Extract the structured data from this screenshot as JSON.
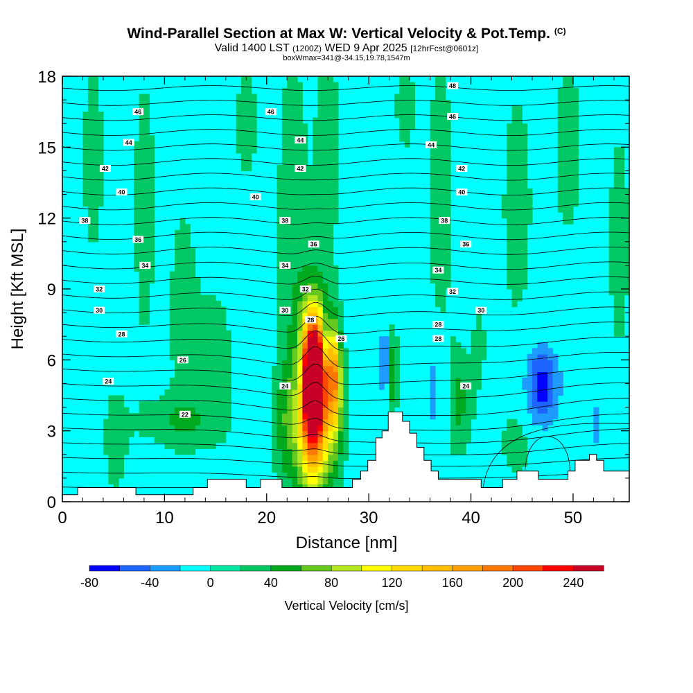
{
  "title": {
    "main": "Wind-Parallel Section at Max W: Vertical Velocity & Pot.Temp.",
    "copyright": "(C)",
    "valid_prefix": "Valid 1400 LST",
    "valid_utc": "(1200Z)",
    "valid_date": "WED 9 Apr 2025",
    "forecast": "[12hrFcst@0601z]",
    "box_info": "boxWmax=341@-34.15,19.78,1547m"
  },
  "chart_data": {
    "type": "heatmap",
    "xlabel": "Distance [nm]",
    "ylabel": "Height [Kft MSL]",
    "xlim": [
      0,
      55.5
    ],
    "ylim": [
      0,
      18
    ],
    "x_ticks": [
      0,
      10,
      20,
      30,
      40,
      50
    ],
    "y_ticks": [
      0,
      3,
      6,
      9,
      12,
      15,
      18
    ],
    "colorbar": {
      "label": "Vertical Velocity [cm/s]",
      "levels": [
        -80,
        -60,
        -40,
        -20,
        0,
        20,
        40,
        60,
        80,
        100,
        120,
        140,
        160,
        180,
        200,
        220,
        240,
        260
      ],
      "tick_labels": [
        "-80",
        "-40",
        "0",
        "40",
        "80",
        "120",
        "160",
        "200",
        "240"
      ],
      "colors": [
        "#0000ff",
        "#1e64ff",
        "#1e9bff",
        "#00ffff",
        "#00e6a0",
        "#00c864",
        "#00aa1e",
        "#64c81e",
        "#b4e61e",
        "#ffff00",
        "#ffdc00",
        "#ffbe00",
        "#ffa000",
        "#ff7800",
        "#ff4600",
        "#ff0000",
        "#c80028"
      ]
    },
    "background_color": "#00ffff",
    "terrain": [
      [
        0,
        0.3
      ],
      [
        1.5,
        0.3
      ],
      [
        1.5,
        0.6
      ],
      [
        7.2,
        0.6
      ],
      [
        7.2,
        0.3
      ],
      [
        12.8,
        0.3
      ],
      [
        12.8,
        0.6
      ],
      [
        14.2,
        0.6
      ],
      [
        14.2,
        0.95
      ],
      [
        18,
        0.95
      ],
      [
        18,
        0.6
      ],
      [
        19.4,
        0.6
      ],
      [
        19.4,
        0.95
      ],
      [
        21.5,
        0.95
      ],
      [
        21.5,
        0.6
      ],
      [
        28.4,
        0.6
      ],
      [
        28.4,
        0.95
      ],
      [
        29.2,
        0.95
      ],
      [
        29.2,
        1.3
      ],
      [
        29.9,
        1.3
      ],
      [
        29.9,
        1.75
      ],
      [
        30.7,
        1.75
      ],
      [
        30.7,
        2.7
      ],
      [
        31.3,
        2.7
      ],
      [
        31.3,
        3.0
      ],
      [
        31.9,
        3.0
      ],
      [
        31.9,
        3.8
      ],
      [
        33.3,
        3.8
      ],
      [
        33.3,
        3.4
      ],
      [
        34,
        3.4
      ],
      [
        34,
        2.9
      ],
      [
        34.7,
        2.9
      ],
      [
        34.7,
        2.3
      ],
      [
        35.4,
        2.3
      ],
      [
        35.4,
        1.75
      ],
      [
        36.1,
        1.75
      ],
      [
        36.1,
        1.3
      ],
      [
        36.8,
        1.3
      ],
      [
        36.8,
        0.95
      ],
      [
        41,
        0.95
      ],
      [
        41,
        0.6
      ],
      [
        43.1,
        0.6
      ],
      [
        43.1,
        0.95
      ],
      [
        44.5,
        0.95
      ],
      [
        44.5,
        1.3
      ],
      [
        46.6,
        1.3
      ],
      [
        46.6,
        0.95
      ],
      [
        49.5,
        0.95
      ],
      [
        49.5,
        1.3
      ],
      [
        50.2,
        1.3
      ],
      [
        50.2,
        1.75
      ],
      [
        51.6,
        1.75
      ],
      [
        51.6,
        2.0
      ],
      [
        52.3,
        2.0
      ],
      [
        52.3,
        1.75
      ],
      [
        53,
        1.75
      ],
      [
        53,
        1.3
      ],
      [
        55.5,
        1.3
      ]
    ],
    "w_features": [
      {
        "x": 24.6,
        "z": 5.2,
        "sx": 0.7,
        "sz": 1.5,
        "w": 240
      },
      {
        "x": 24.6,
        "z": 4.6,
        "sx": 1.0,
        "sz": 2.5,
        "w": 150
      },
      {
        "x": 24.6,
        "z": 3.8,
        "sx": 1.25,
        "sz": 3.0,
        "w": 70
      },
      {
        "x": 26.6,
        "z": 5.3,
        "sx": 0.45,
        "sz": 1.4,
        "w": 115
      },
      {
        "x": 26.8,
        "z": 4.0,
        "sx": 0.75,
        "sz": 2.2,
        "w": 45
      },
      {
        "x": 32.2,
        "z": 5.5,
        "sx": 0.45,
        "sz": 1.4,
        "w": 60
      },
      {
        "x": 38.8,
        "z": 4.2,
        "sx": 1.0,
        "sz": 1.6,
        "w": 40
      },
      {
        "x": 21.8,
        "z": 3.2,
        "sx": 0.9,
        "sz": 1.8,
        "w": 35
      },
      {
        "x": 23.3,
        "z": 5.5,
        "sx": 0.4,
        "sz": 1.1,
        "w": -45
      },
      {
        "x": 25.8,
        "z": 6.8,
        "sx": 0.3,
        "sz": 1.0,
        "w": -40
      },
      {
        "x": 31.6,
        "z": 5.8,
        "sx": 0.35,
        "sz": 1.2,
        "w": -80
      },
      {
        "x": 31.5,
        "z": 11.2,
        "sx": 0.25,
        "sz": 0.8,
        "w": -35
      },
      {
        "x": 28.6,
        "z": 5.0,
        "sx": 0.5,
        "sz": 1.2,
        "w": -25
      },
      {
        "x": 36.3,
        "z": 4.8,
        "sx": 0.45,
        "sz": 1.4,
        "w": -45
      },
      {
        "x": 37.5,
        "z": 4.0,
        "sx": 0.35,
        "sz": 1.2,
        "w": -35
      },
      {
        "x": 41.3,
        "z": 4.0,
        "sx": 0.35,
        "sz": 1.0,
        "w": -30
      },
      {
        "x": 46.9,
        "z": 4.9,
        "sx": 1.3,
        "sz": 1.3,
        "w": -75
      },
      {
        "x": 52.3,
        "z": 3.2,
        "sx": 0.5,
        "sz": 1.0,
        "w": -35
      },
      {
        "x": 28.5,
        "z": 17.5,
        "sx": 0.4,
        "sz": 0.7,
        "w": -30
      },
      {
        "x": 11.5,
        "z": 3.4,
        "sx": 3.0,
        "sz": 0.8,
        "w": 28
      },
      {
        "x": 3.0,
        "z": 14.5,
        "sx": 0.9,
        "sz": 3.5,
        "w": 25
      },
      {
        "x": 8.0,
        "z": 12.5,
        "sx": 0.9,
        "sz": 5.0,
        "w": 25
      },
      {
        "x": 11.8,
        "z": 8.0,
        "sx": 1.2,
        "sz": 4.0,
        "w": 24
      },
      {
        "x": 15.0,
        "z": 6.0,
        "sx": 1.4,
        "sz": 2.5,
        "w": 25
      },
      {
        "x": 22.5,
        "z": 11.0,
        "sx": 1.3,
        "sz": 7.5,
        "w": 26
      },
      {
        "x": 26.0,
        "z": 15.0,
        "sx": 1.0,
        "sz": 4.5,
        "w": 24
      },
      {
        "x": 37.0,
        "z": 13.0,
        "sx": 1.2,
        "sz": 5.0,
        "w": 25
      },
      {
        "x": 44.5,
        "z": 12.5,
        "sx": 1.3,
        "sz": 4.5,
        "w": 24
      },
      {
        "x": 49.5,
        "z": 15.0,
        "sx": 1.2,
        "sz": 3.5,
        "w": 24
      },
      {
        "x": 54.5,
        "z": 11.0,
        "sx": 0.9,
        "sz": 4.0,
        "w": 25
      },
      {
        "x": 5.2,
        "z": 2.5,
        "sx": 1.0,
        "sz": 2.0,
        "w": 24
      },
      {
        "x": 18.0,
        "z": 16.0,
        "sx": 1.0,
        "sz": 2.5,
        "w": 22
      },
      {
        "x": 33.5,
        "z": 16.8,
        "sx": 0.8,
        "sz": 1.8,
        "w": 24
      },
      {
        "x": 44.5,
        "z": 2.5,
        "sx": 1.2,
        "sz": 1.2,
        "w": 26
      },
      {
        "x": 40.8,
        "z": 6.3,
        "sx": 0.5,
        "sz": 1.5,
        "w": 26
      }
    ],
    "theta_contours": [
      20,
      21,
      22,
      23,
      24,
      25,
      26,
      27,
      28,
      29,
      30,
      31,
      32,
      33,
      34,
      35,
      36,
      37,
      38,
      39,
      40,
      41,
      42,
      43,
      44,
      45,
      46,
      47,
      48
    ],
    "theta_labels": [
      {
        "x": 12.0,
        "z": 3.7,
        "text": "22"
      },
      {
        "x": 4.5,
        "z": 5.1,
        "text": "24"
      },
      {
        "x": 21.8,
        "z": 4.9,
        "text": "24"
      },
      {
        "x": 39.5,
        "z": 4.9,
        "text": "24"
      },
      {
        "x": 11.8,
        "z": 6.0,
        "text": "26"
      },
      {
        "x": 27.3,
        "z": 6.9,
        "text": "26"
      },
      {
        "x": 5.8,
        "z": 7.1,
        "text": "28"
      },
      {
        "x": 24.3,
        "z": 7.7,
        "text": "28"
      },
      {
        "x": 36.8,
        "z": 6.9,
        "text": "28"
      },
      {
        "x": 36.8,
        "z": 7.5,
        "text": "28"
      },
      {
        "x": 3.6,
        "z": 8.1,
        "text": "30"
      },
      {
        "x": 21.8,
        "z": 8.1,
        "text": "30"
      },
      {
        "x": 41.0,
        "z": 8.1,
        "text": "30"
      },
      {
        "x": 3.6,
        "z": 9.0,
        "text": "32"
      },
      {
        "x": 23.8,
        "z": 9.0,
        "text": "32"
      },
      {
        "x": 38.2,
        "z": 8.9,
        "text": "32"
      },
      {
        "x": 8.1,
        "z": 10.0,
        "text": "34"
      },
      {
        "x": 21.8,
        "z": 10.0,
        "text": "34"
      },
      {
        "x": 36.8,
        "z": 9.8,
        "text": "34"
      },
      {
        "x": 7.4,
        "z": 11.1,
        "text": "36"
      },
      {
        "x": 24.6,
        "z": 10.9,
        "text": "36"
      },
      {
        "x": 39.5,
        "z": 10.9,
        "text": "36"
      },
      {
        "x": 2.2,
        "z": 11.9,
        "text": "38"
      },
      {
        "x": 21.8,
        "z": 11.9,
        "text": "38"
      },
      {
        "x": 37.4,
        "z": 11.9,
        "text": "38"
      },
      {
        "x": 5.8,
        "z": 13.1,
        "text": "40"
      },
      {
        "x": 18.9,
        "z": 12.9,
        "text": "40"
      },
      {
        "x": 39.1,
        "z": 13.1,
        "text": "40"
      },
      {
        "x": 4.2,
        "z": 14.1,
        "text": "42"
      },
      {
        "x": 23.3,
        "z": 14.1,
        "text": "42"
      },
      {
        "x": 39.1,
        "z": 14.1,
        "text": "42"
      },
      {
        "x": 6.5,
        "z": 15.2,
        "text": "44"
      },
      {
        "x": 23.3,
        "z": 15.3,
        "text": "44"
      },
      {
        "x": 36.1,
        "z": 15.1,
        "text": "44"
      },
      {
        "x": 7.4,
        "z": 16.5,
        "text": "46"
      },
      {
        "x": 20.4,
        "z": 16.5,
        "text": "46"
      },
      {
        "x": 38.2,
        "z": 16.3,
        "text": "46"
      },
      {
        "x": 38.2,
        "z": 17.6,
        "text": "48"
      }
    ]
  }
}
